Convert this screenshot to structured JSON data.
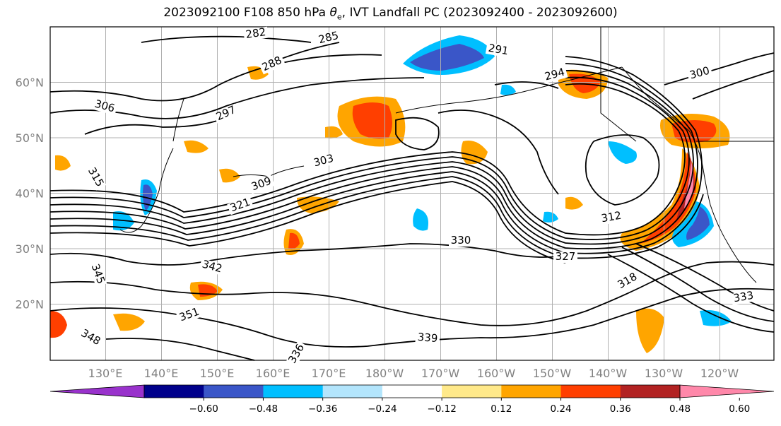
{
  "title": {
    "prefix": "2023092100 F108 850 hPa ",
    "theta": "θ",
    "theta_sub": "e",
    "suffix": ", IVT Landfall PC (2023092400 - 2023092600)"
  },
  "map": {
    "lon_labels": [
      "130°E",
      "140°E",
      "150°E",
      "160°E",
      "170°E",
      "180°W",
      "170°W",
      "160°W",
      "150°W",
      "140°W",
      "130°W",
      "120°W"
    ],
    "lat_labels": [
      "60°N",
      "50°N",
      "40°N",
      "30°N",
      "20°N"
    ],
    "contour_labels": [
      "282",
      "285",
      "288",
      "291",
      "294",
      "297",
      "300",
      "303",
      "306",
      "309",
      "312",
      "315",
      "318",
      "321",
      "327",
      "330",
      "333",
      "336",
      "339",
      "342",
      "345",
      "348",
      "351"
    ]
  },
  "colorbar": {
    "ticks": [
      "−0.60",
      "−0.48",
      "−0.36",
      "−0.24",
      "−0.12",
      "0.12",
      "0.24",
      "0.36",
      "0.48",
      "0.60"
    ],
    "colors": [
      "#9932CC",
      "#00008B",
      "#3A56C8",
      "#00BFFF",
      "#B3E5FC",
      "#FFFFFF",
      "#FFE98A",
      "#FFA500",
      "#FF3F00",
      "#B22222",
      "#FF88AA"
    ]
  }
}
